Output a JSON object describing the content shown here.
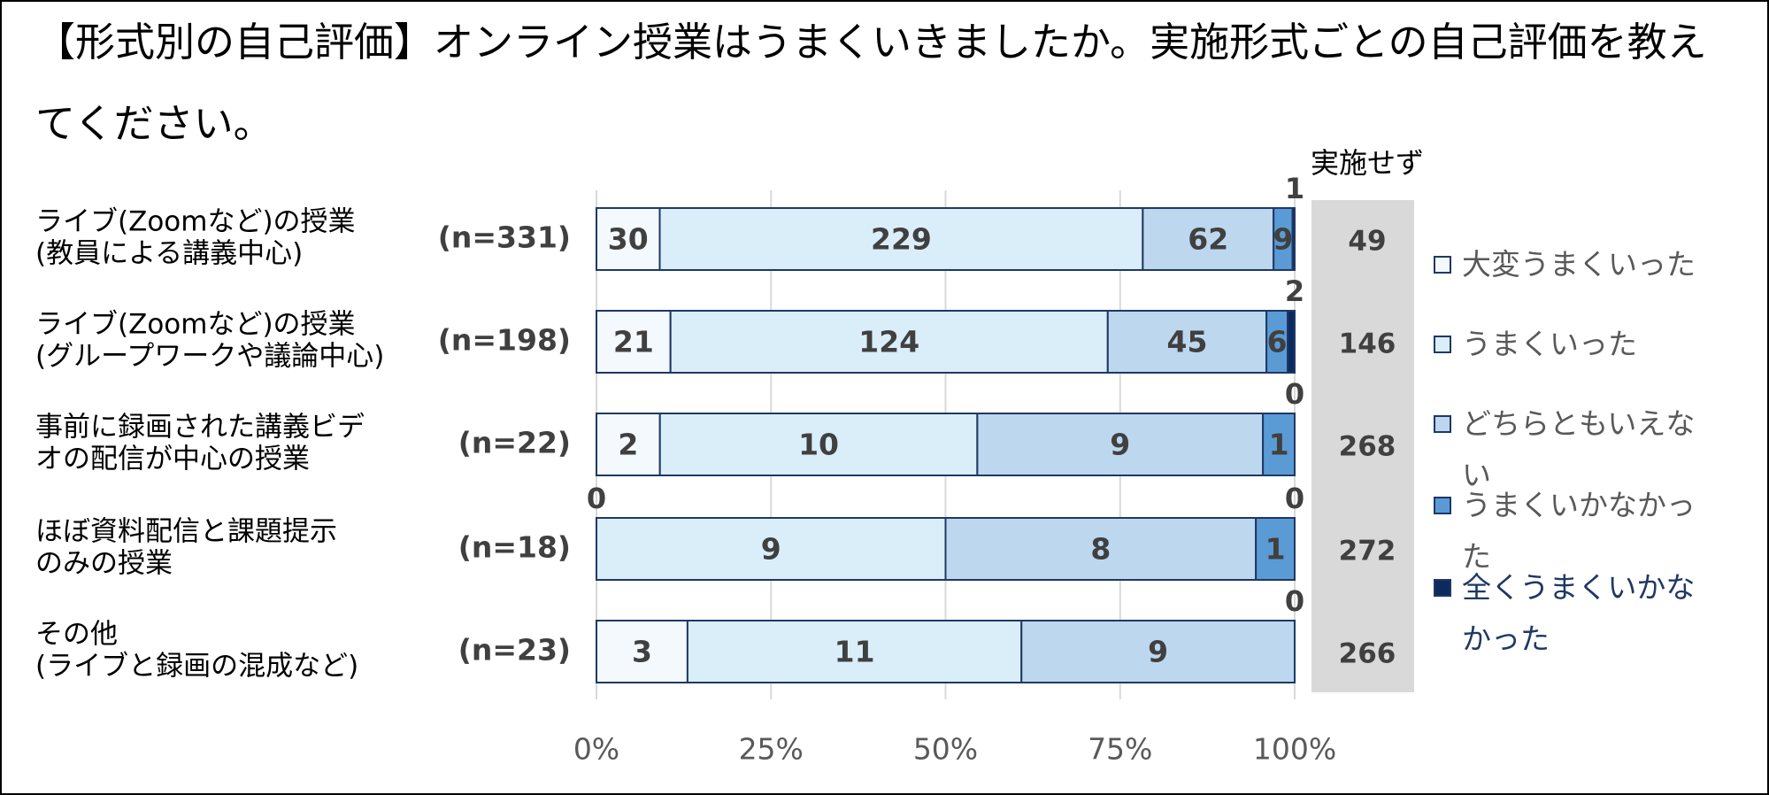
{
  "chart_data": {
    "type": "stacked-bar-100",
    "title": "【形式別の自己評価】オンライン授業はうまくいきましたか。実施形式ごとの自己評価を教えてください。",
    "categories": [
      [
        "ライブ(Zoomなど)の授業",
        "(教員による講義中心)"
      ],
      [
        "ライブ(Zoomなど)の授業",
        "(グループワークや議論中心)"
      ],
      [
        "事前に録画された講義ビデ",
        "オの配信が中心の授業"
      ],
      [
        "ほぼ資料配信と課題提示",
        "のみの授業"
      ],
      [
        "その他",
        "(ライブと録画の混成など)"
      ]
    ],
    "n_labels": [
      "(n=331)",
      "(n=198)",
      "(n=22)",
      "(n=18)",
      "(n=23)"
    ],
    "series": [
      {
        "name": "大変うまくいった",
        "color": "#f3f9fd",
        "values": [
          30,
          21,
          2,
          0,
          3
        ]
      },
      {
        "name": "うまくいった",
        "color": "#daeefa",
        "values": [
          229,
          124,
          10,
          9,
          11
        ]
      },
      {
        "name": "どちらともいえない",
        "color": "#bdd7ee",
        "values": [
          62,
          45,
          9,
          8,
          9
        ]
      },
      {
        "name": "うまくいかなかった",
        "color": "#5b9bd5",
        "values": [
          9,
          6,
          1,
          1,
          null
        ]
      },
      {
        "name": "全くうまくいかなかった",
        "color": "#0d2a5e",
        "values": [
          1,
          2,
          0,
          0,
          0
        ]
      }
    ],
    "not_conducted": {
      "label": "実施せず",
      "values": [
        49,
        146,
        268,
        272,
        266
      ]
    },
    "xlim": [
      0,
      100
    ],
    "xticks": [
      {
        "value": 0,
        "label": "0%"
      },
      {
        "value": 25,
        "label": "25%"
      },
      {
        "value": 50,
        "label": "50%"
      },
      {
        "value": 75,
        "label": "75%"
      },
      {
        "value": 100,
        "label": "100%"
      }
    ],
    "grid": true,
    "legend": "right"
  }
}
